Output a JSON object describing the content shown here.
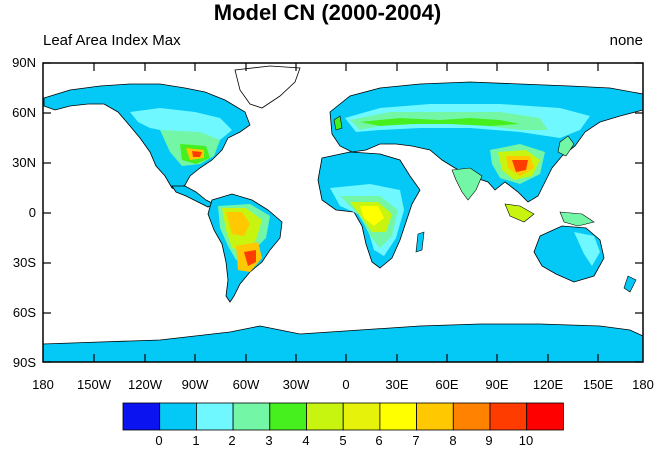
{
  "title": "Model CN (2000-2004)",
  "subtitle_left": "Leaf Area Index Max",
  "subtitle_right": "none",
  "lat_labels": [
    "90N",
    "60N",
    "30N",
    "0",
    "30S",
    "60S",
    "90S"
  ],
  "lon_labels": [
    "180",
    "150W",
    "120W",
    "90W",
    "60W",
    "30W",
    "0",
    "30E",
    "60E",
    "90E",
    "120E",
    "150E",
    "180"
  ],
  "colorbar": {
    "labels": [
      "0",
      "1",
      "2",
      "3",
      "4",
      "5",
      "6",
      "7",
      "8",
      "9",
      "10"
    ],
    "colors": [
      "#0b14f0",
      "#04c8f5",
      "#6ff8ff",
      "#73f7a6",
      "#46f01e",
      "#c8f50f",
      "#e6f20a",
      "#ffff00",
      "#ffc800",
      "#ff8200",
      "#ff3c00",
      "#ff0000"
    ]
  },
  "land_colors": {
    "ocean": "#ffffff",
    "land_low": "#04c8f5",
    "land_mid": "#6ff8ff",
    "land_green": "#73f7a6",
    "land_bright": "#46f01e",
    "land_yg": "#c8f50f",
    "land_yellow": "#ffff00",
    "land_orange": "#ffc800",
    "land_dorange": "#ff8200",
    "land_red": "#ff3c00"
  }
}
